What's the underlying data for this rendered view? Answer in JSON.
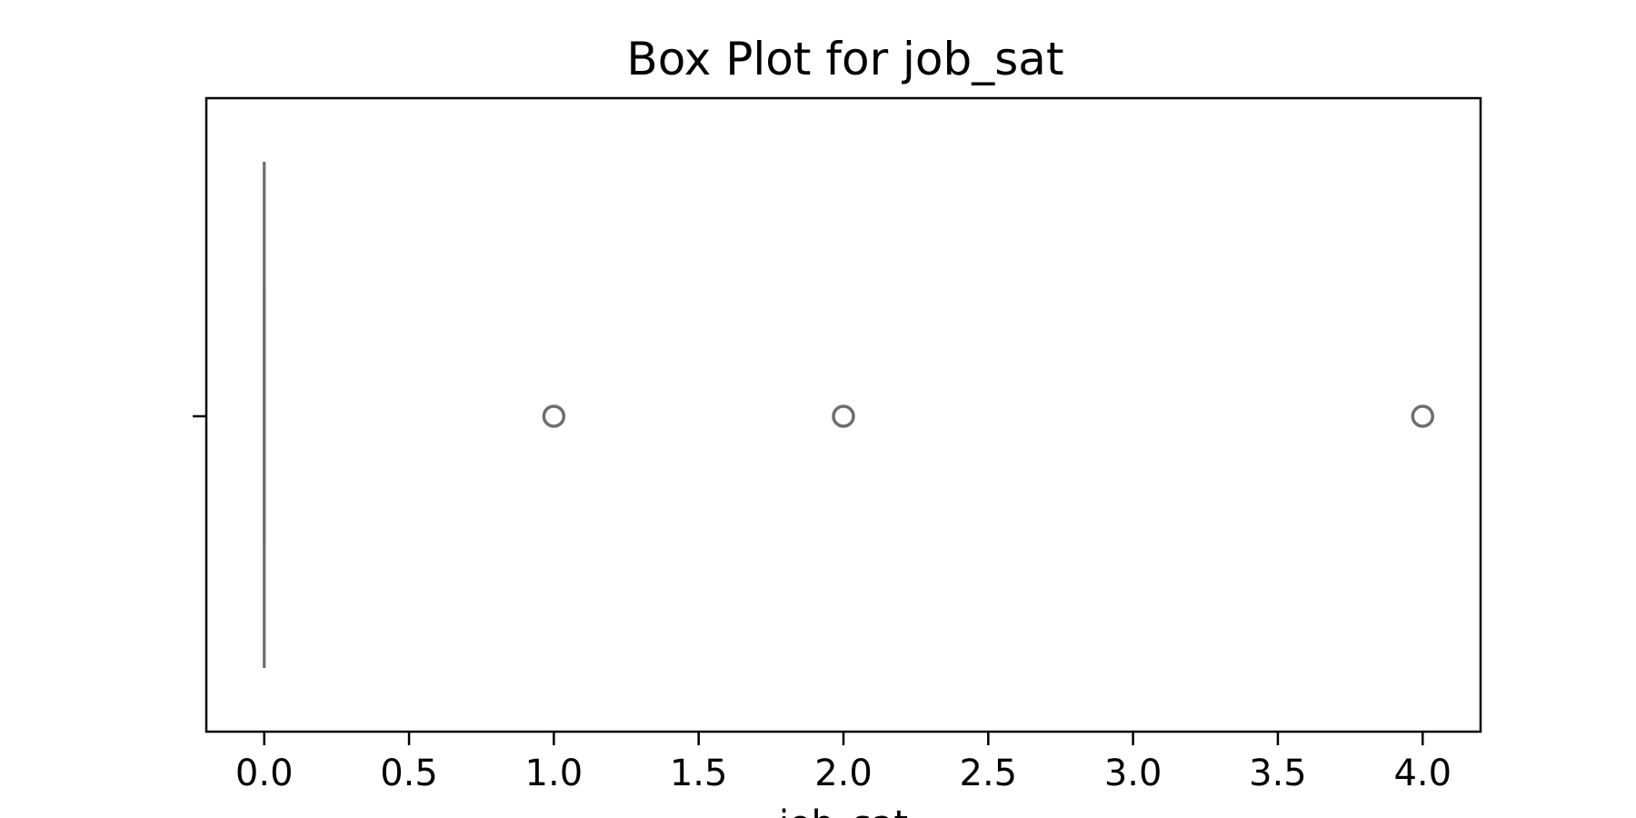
{
  "chart_data": {
    "type": "box",
    "title": "Box Plot for job_sat",
    "xlabel": "job_sat",
    "ylabel": "",
    "xlim": [
      -0.2,
      4.2
    ],
    "xticks": [
      0.0,
      0.5,
      1.0,
      1.5,
      2.0,
      2.5,
      3.0,
      3.5,
      4.0
    ],
    "xtick_labels": [
      "0.0",
      "0.5",
      "1.0",
      "1.5",
      "2.0",
      "2.5",
      "3.0",
      "3.5",
      "4.0"
    ],
    "orientation": "horizontal",
    "grid": false,
    "legend": "none",
    "box": {
      "min": 0,
      "q1": 0,
      "median": 0,
      "q3": 0,
      "max": 0
    },
    "outliers": [
      1,
      2,
      4
    ],
    "colors": {
      "box_line": "#6e6e6e",
      "axes": "#000000",
      "background": "#ffffff"
    }
  }
}
